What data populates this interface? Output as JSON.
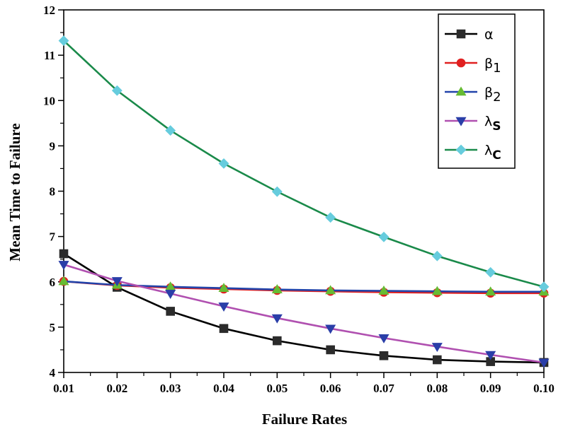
{
  "chart_data": {
    "type": "line",
    "title": "",
    "xlabel": "Failure Rates",
    "ylabel": "Mean Time to Failure",
    "xlim": [
      0.01,
      0.1
    ],
    "ylim": [
      4,
      12
    ],
    "x": [
      0.01,
      0.02,
      0.03,
      0.04,
      0.05,
      0.06,
      0.07,
      0.08,
      0.09,
      0.1
    ],
    "x_tick_labels": [
      "0.01",
      "0.02",
      "0.03",
      "0.04",
      "0.05",
      "0.06",
      "0.07",
      "0.08",
      "0.09",
      "0.10"
    ],
    "y_tick_labels": [
      "4",
      "5",
      "6",
      "7",
      "8",
      "9",
      "10",
      "11",
      "12"
    ],
    "grid": false,
    "legend_position": "top-right",
    "series": [
      {
        "name": "α",
        "sub": "",
        "color": "#000000",
        "marker": "square",
        "marker_color": "#2b2b2b",
        "values": [
          6.62,
          5.88,
          5.35,
          4.97,
          4.7,
          4.5,
          4.37,
          4.28,
          4.24,
          4.22
        ]
      },
      {
        "name": "β",
        "sub": "1",
        "color": "#e02020",
        "marker": "circle",
        "marker_color": "#e02020",
        "values": [
          6.01,
          5.92,
          5.87,
          5.84,
          5.81,
          5.79,
          5.77,
          5.76,
          5.75,
          5.75
        ]
      },
      {
        "name": "β",
        "sub": "2",
        "color": "#2244aa",
        "marker": "triangle-up",
        "marker_color": "#66bb33",
        "values": [
          6.01,
          5.93,
          5.89,
          5.86,
          5.83,
          5.81,
          5.8,
          5.79,
          5.78,
          5.78
        ]
      },
      {
        "name": "λ",
        "sub": "S",
        "color": "#b050b0",
        "marker": "triangle-down",
        "marker_color": "#2a3ea8",
        "values": [
          6.38,
          6.02,
          5.74,
          5.46,
          5.2,
          4.97,
          4.76,
          4.57,
          4.39,
          4.22
        ]
      },
      {
        "name": "λ",
        "sub": "C",
        "color": "#1a8a4a",
        "marker": "diamond",
        "marker_color": "#66ccdd",
        "values": [
          11.32,
          10.22,
          9.34,
          8.61,
          7.99,
          7.42,
          6.99,
          6.57,
          6.21,
          5.89
        ]
      }
    ]
  }
}
